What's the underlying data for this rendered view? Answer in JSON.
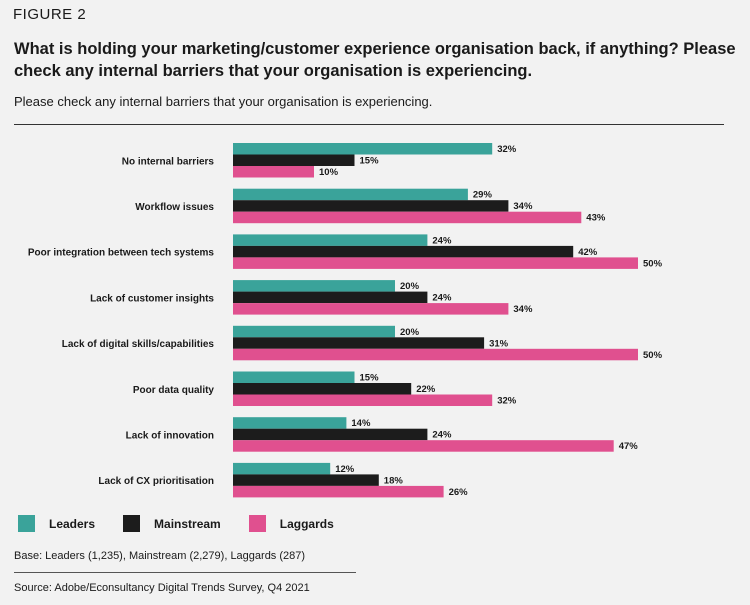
{
  "figure_label": "FIGURE 2",
  "base_note": "Base: Leaders (1,235), Mainstream (2,279), Laggards (287)",
  "source": "Source: Adobe/Econsultancy Digital Trends Survey, Q4 2021",
  "colors": {
    "leaders": "#3aa39a",
    "mainstream": "#1c1c1c",
    "laggards": "#e0508f"
  },
  "chart_data": {
    "type": "bar",
    "orientation": "horizontal",
    "title": "What is holding your marketing/customer experience organisation back, if anything? Please check any internal barriers that your organisation is experiencing.",
    "subtitle": "Please check any internal barriers that your organisation is experiencing.",
    "categories": [
      "No internal barriers",
      "Workflow issues",
      "Poor integration between tech systems",
      "Lack of customer insights",
      "Lack of digital skills/capabilities",
      "Poor data quality",
      "Lack of innovation",
      "Lack of CX prioritisation"
    ],
    "series": [
      {
        "name": "Leaders",
        "color": "#3aa39a",
        "values": [
          32,
          29,
          24,
          20,
          20,
          15,
          14,
          12
        ]
      },
      {
        "name": "Mainstream",
        "color": "#1c1c1c",
        "values": [
          15,
          34,
          42,
          24,
          31,
          22,
          24,
          18
        ]
      },
      {
        "name": "Laggards",
        "color": "#e0508f",
        "values": [
          10,
          43,
          50,
          34,
          50,
          32,
          47,
          26
        ]
      }
    ],
    "value_suffix": "%",
    "xlim": [
      0,
      50
    ],
    "grid": false,
    "legend_position": "bottom-left"
  }
}
